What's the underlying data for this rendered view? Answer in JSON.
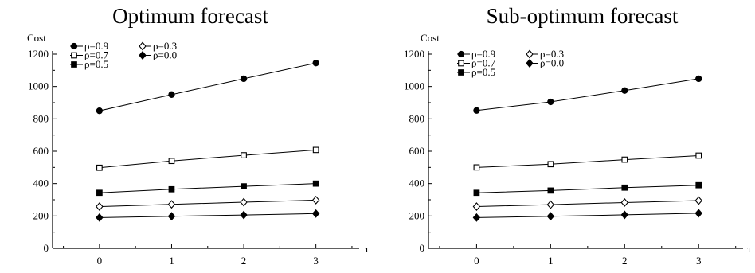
{
  "chart_data": [
    {
      "type": "line",
      "title": "Optimum forecast",
      "xlabel": "τ",
      "ylabel": "Cost",
      "x": [
        0,
        1,
        2,
        3
      ],
      "xticks": [
        "0",
        "1",
        "2",
        "3"
      ],
      "xlim": [
        -0.65,
        3.6
      ],
      "ylim": [
        0,
        1200
      ],
      "yticks": [
        "0",
        "200",
        "400",
        "600",
        "800",
        "1000",
        "1200"
      ],
      "grid": false,
      "legend_position": "top-left",
      "series": [
        {
          "name": "ρ=0.9",
          "marker": "filled-circle",
          "values": [
            850,
            950,
            1048,
            1145
          ]
        },
        {
          "name": "ρ=0.7",
          "marker": "open-square",
          "values": [
            498,
            540,
            575,
            608
          ]
        },
        {
          "name": "ρ=0.5",
          "marker": "filled-square",
          "values": [
            343,
            365,
            383,
            400
          ]
        },
        {
          "name": "ρ=0.3",
          "marker": "open-diamond",
          "values": [
            258,
            272,
            285,
            298
          ]
        },
        {
          "name": "ρ=0.0",
          "marker": "filled-diamond",
          "values": [
            190,
            198,
            206,
            215
          ]
        }
      ]
    },
    {
      "type": "line",
      "title": "Sub-optimum forecast",
      "xlabel": "τ",
      "ylabel": "Cost",
      "x": [
        0,
        1,
        2,
        3
      ],
      "xticks": [
        "0",
        "1",
        "2",
        "3"
      ],
      "xlim": [
        -0.65,
        3.6
      ],
      "ylim": [
        0,
        1200
      ],
      "yticks": [
        "0",
        "200",
        "400",
        "600",
        "800",
        "1000",
        "1200"
      ],
      "grid": false,
      "legend_position": "top-left",
      "series": [
        {
          "name": "ρ=0.9",
          "marker": "filled-circle",
          "values": [
            852,
            905,
            975,
            1048
          ]
        },
        {
          "name": "ρ=0.7",
          "marker": "open-square",
          "values": [
            500,
            520,
            548,
            573
          ]
        },
        {
          "name": "ρ=0.5",
          "marker": "filled-square",
          "values": [
            343,
            357,
            375,
            390
          ]
        },
        {
          "name": "ρ=0.3",
          "marker": "open-diamond",
          "values": [
            258,
            270,
            283,
            295
          ]
        },
        {
          "name": "ρ=0.0",
          "marker": "filled-diamond",
          "values": [
            190,
            198,
            207,
            217
          ]
        }
      ]
    }
  ]
}
